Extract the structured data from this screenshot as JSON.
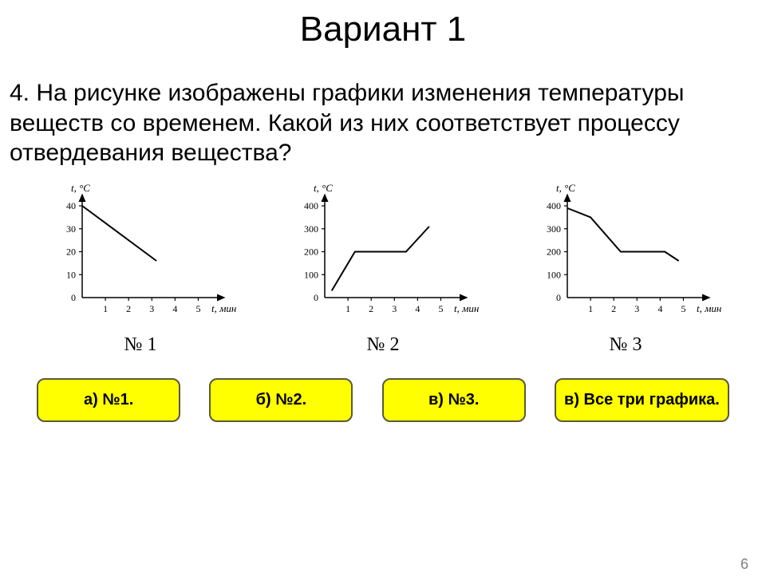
{
  "title": "Вариант 1",
  "question": "4. На рисунке изображены графики изменения температуры веществ со временем. Какой из них соответствует процессу отвердевания вещества?",
  "charts": [
    {
      "id": 1,
      "label": "№ 1",
      "y_axis_label": "t, °C",
      "x_axis_label": "t, мин",
      "y_ticks": [
        0,
        10,
        20,
        30,
        40
      ],
      "x_ticks": [
        1,
        2,
        3,
        4,
        5
      ],
      "line_points": [
        [
          0,
          40
        ],
        [
          3.2,
          16
        ]
      ],
      "stroke_width": 2,
      "axis_color": "#000000",
      "tick_fontsize": 12
    },
    {
      "id": 2,
      "label": "№ 2",
      "y_axis_label": "t, °C",
      "x_axis_label": "t, мин",
      "y_ticks": [
        0,
        100,
        200,
        300,
        400
      ],
      "x_ticks": [
        1,
        2,
        3,
        4,
        5
      ],
      "line_points": [
        [
          0.3,
          30
        ],
        [
          1.3,
          200
        ],
        [
          3.5,
          200
        ],
        [
          4.5,
          310
        ]
      ],
      "stroke_width": 2,
      "axis_color": "#000000",
      "tick_fontsize": 12
    },
    {
      "id": 3,
      "label": "№ 3",
      "y_axis_label": "t, °C",
      "x_axis_label": "t, мин",
      "y_ticks": [
        0,
        100,
        200,
        300,
        400
      ],
      "x_ticks": [
        1,
        2,
        3,
        4,
        5
      ],
      "line_points": [
        [
          0,
          390
        ],
        [
          1,
          350
        ],
        [
          2.3,
          200
        ],
        [
          4.2,
          200
        ],
        [
          4.8,
          160
        ]
      ],
      "stroke_width": 2,
      "axis_color": "#000000",
      "tick_fontsize": 12
    }
  ],
  "answers": [
    {
      "key": "a",
      "label": "а) №1."
    },
    {
      "key": "b",
      "label": "б) №2."
    },
    {
      "key": "v",
      "label": "в) №3."
    },
    {
      "key": "all",
      "label": "в) Все три графика."
    }
  ],
  "page_number": "6",
  "colors": {
    "button_bg": "#ffff00",
    "button_border": "#5a5a3a",
    "text": "#000000",
    "page_num": "#808080",
    "background": "#ffffff"
  }
}
